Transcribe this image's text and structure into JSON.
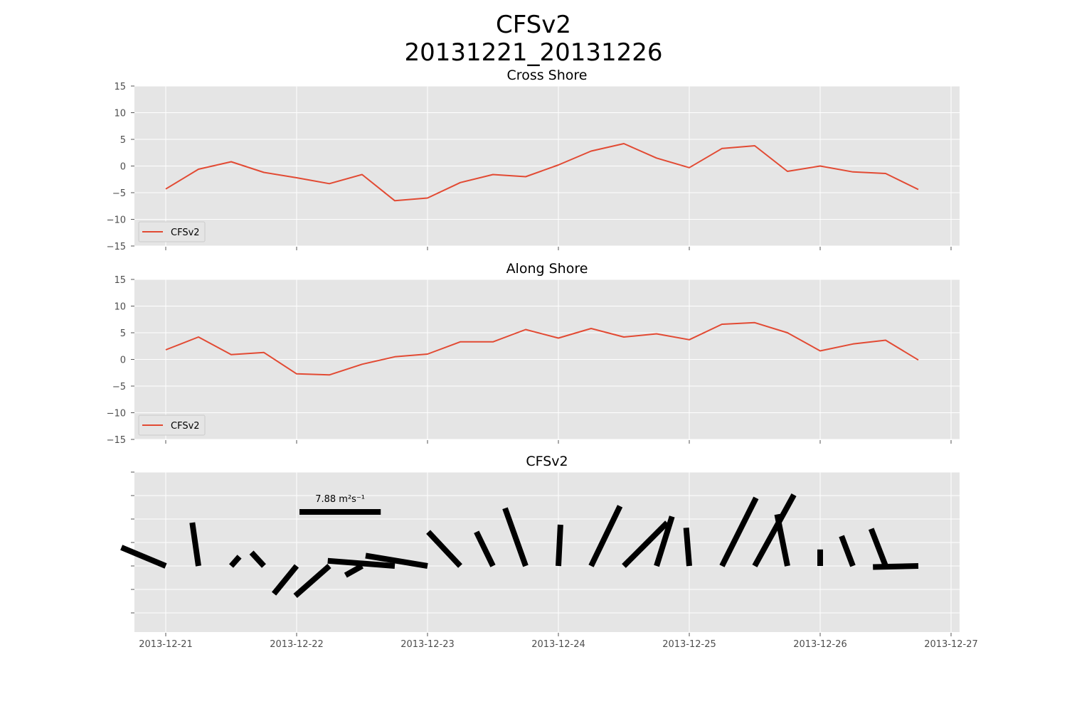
{
  "title_line1": "CFSv2",
  "title_line2": "20131221_20131226",
  "date_ticks": [
    "2013-12-21",
    "2013-12-22",
    "2013-12-23",
    "2013-12-24",
    "2013-12-25",
    "2013-12-26",
    "2013-12-27"
  ],
  "colors": {
    "line": "#e24a33",
    "panel_bg": "#e5e5e5",
    "grid": "#ffffff",
    "arrow": "#000000"
  },
  "chart_data": [
    {
      "type": "line",
      "title": "Cross Shore",
      "ylim": [
        -15,
        15
      ],
      "yticks": [
        "15",
        "10",
        "5",
        "0",
        "−5",
        "−10",
        "−15"
      ],
      "grid": true,
      "legend": "lower-left",
      "x": [
        "2013-12-21 00:00",
        "2013-12-21 06:00",
        "2013-12-21 12:00",
        "2013-12-21 18:00",
        "2013-12-22 00:00",
        "2013-12-22 06:00",
        "2013-12-22 12:00",
        "2013-12-22 18:00",
        "2013-12-23 00:00",
        "2013-12-23 06:00",
        "2013-12-23 12:00",
        "2013-12-23 18:00",
        "2013-12-24 00:00",
        "2013-12-24 06:00",
        "2013-12-24 12:00",
        "2013-12-24 18:00",
        "2013-12-25 00:00",
        "2013-12-25 06:00",
        "2013-12-25 12:00",
        "2013-12-25 18:00",
        "2013-12-26 00:00",
        "2013-12-26 06:00",
        "2013-12-26 12:00",
        "2013-12-26 18:00"
      ],
      "series": [
        {
          "name": "CFSv2",
          "values": [
            -4.3,
            -0.6,
            0.8,
            -1.2,
            -2.2,
            -3.3,
            -1.6,
            -6.5,
            -6.0,
            -3.1,
            -1.6,
            -2.0,
            0.2,
            2.8,
            4.2,
            1.5,
            -0.3,
            3.3,
            3.8,
            -1.0,
            0.0,
            -1.1,
            -1.4,
            -4.4
          ]
        }
      ]
    },
    {
      "type": "line",
      "title": "Along Shore",
      "ylim": [
        -15,
        15
      ],
      "yticks": [
        "15",
        "10",
        "5",
        "0",
        "−5",
        "−10",
        "−15"
      ],
      "grid": true,
      "legend": "lower-left",
      "x": [
        "2013-12-21 00:00",
        "2013-12-21 06:00",
        "2013-12-21 12:00",
        "2013-12-21 18:00",
        "2013-12-22 00:00",
        "2013-12-22 06:00",
        "2013-12-22 12:00",
        "2013-12-22 18:00",
        "2013-12-23 00:00",
        "2013-12-23 06:00",
        "2013-12-23 12:00",
        "2013-12-23 18:00",
        "2013-12-24 00:00",
        "2013-12-24 06:00",
        "2013-12-24 12:00",
        "2013-12-24 18:00",
        "2013-12-25 00:00",
        "2013-12-25 06:00",
        "2013-12-25 12:00",
        "2013-12-25 18:00",
        "2013-12-26 00:00",
        "2013-12-26 06:00",
        "2013-12-26 12:00",
        "2013-12-26 18:00"
      ],
      "series": [
        {
          "name": "CFSv2",
          "values": [
            1.8,
            4.2,
            0.9,
            1.3,
            -2.7,
            -2.9,
            -0.9,
            0.5,
            1.0,
            3.3,
            3.3,
            5.6,
            4.0,
            5.8,
            4.2,
            4.8,
            3.7,
            6.6,
            6.9,
            5.0,
            1.6,
            2.9,
            3.6,
            -0.1
          ]
        }
      ]
    },
    {
      "type": "quiver",
      "title": "CFSv2",
      "grid": true,
      "x": [
        "2013-12-21 00:00",
        "2013-12-21 06:00",
        "2013-12-21 12:00",
        "2013-12-21 18:00",
        "2013-12-22 00:00",
        "2013-12-22 06:00",
        "2013-12-22 12:00",
        "2013-12-22 18:00",
        "2013-12-23 00:00",
        "2013-12-23 06:00",
        "2013-12-23 12:00",
        "2013-12-23 18:00",
        "2013-12-24 00:00",
        "2013-12-24 06:00",
        "2013-12-24 12:00",
        "2013-12-24 18:00",
        "2013-12-25 00:00",
        "2013-12-25 06:00",
        "2013-12-25 12:00",
        "2013-12-25 18:00",
        "2013-12-26 00:00",
        "2013-12-26 06:00",
        "2013-12-26 12:00",
        "2013-12-26 18:00"
      ],
      "u": [
        -4.3,
        -0.6,
        0.8,
        -1.2,
        -2.2,
        -3.3,
        -1.6,
        -6.5,
        -6.0,
        -3.1,
        -1.6,
        -2.0,
        0.2,
        2.8,
        4.2,
        1.5,
        -0.3,
        3.3,
        3.8,
        -1.0,
        0.0,
        -1.1,
        -1.4,
        -4.4
      ],
      "v": [
        1.8,
        4.2,
        0.9,
        1.3,
        -2.7,
        -2.9,
        -0.9,
        0.5,
        1.0,
        3.3,
        3.3,
        5.6,
        4.0,
        5.8,
        4.2,
        4.8,
        3.7,
        6.6,
        6.9,
        5.0,
        1.6,
        2.9,
        3.6,
        -0.1
      ],
      "key": {
        "magnitude": 7.88,
        "label": "7.88 m²s⁻¹"
      }
    }
  ]
}
